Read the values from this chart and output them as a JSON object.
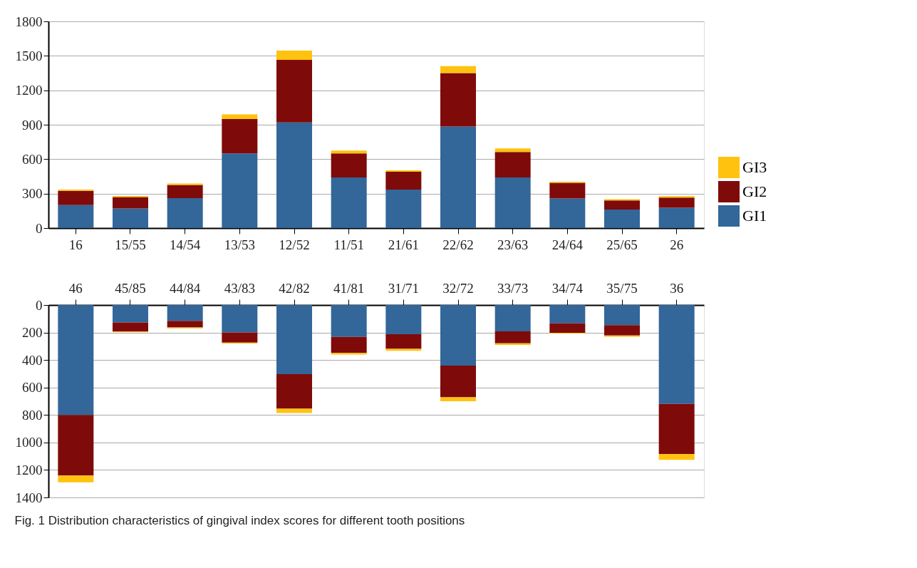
{
  "chart_data": [
    {
      "type": "bar",
      "stacked": true,
      "categories": [
        "16",
        "15/55",
        "14/54",
        "13/53",
        "12/52",
        "11/51",
        "21/61",
        "22/62",
        "23/63",
        "24/64",
        "25/65",
        "26"
      ],
      "series": [
        {
          "name": "GI1",
          "color": "#336699",
          "values": [
            200,
            170,
            260,
            650,
            920,
            440,
            335,
            885,
            440,
            257,
            161,
            177
          ]
        },
        {
          "name": "GI2",
          "color": "#7f0a0a",
          "values": [
            125,
            100,
            115,
            300,
            545,
            210,
            155,
            465,
            223,
            137,
            80,
            88
          ]
        },
        {
          "name": "GI3",
          "color": "#ffc20e",
          "values": [
            10,
            10,
            13,
            40,
            80,
            25,
            12,
            60,
            30,
            10,
            10,
            12
          ]
        }
      ],
      "ylim": [
        0,
        1800
      ],
      "yticks": [
        0,
        300,
        600,
        900,
        1200,
        1500,
        1800
      ],
      "grid": "y",
      "legend": "right"
    },
    {
      "type": "bar",
      "stacked": true,
      "categories": [
        "46",
        "45/85",
        "44/84",
        "43/83",
        "42/82",
        "41/81",
        "31/71",
        "32/72",
        "33/73",
        "34/74",
        "35/75",
        "36"
      ],
      "series": [
        {
          "color": "#336699",
          "values": [
            800,
            127,
            115,
            200,
            503,
            232,
            212,
            441,
            192,
            133,
            146,
            720
          ]
        },
        {
          "color": "#7f0a0a",
          "values": [
            440,
            66,
            48,
            73,
            251,
            117,
            107,
            230,
            87,
            69,
            76,
            365
          ]
        },
        {
          "color": "#ffc20e",
          "values": [
            50,
            5,
            7,
            7,
            32,
            12,
            14,
            29,
            12,
            6,
            9,
            41
          ]
        }
      ],
      "ylim": [
        1400,
        0
      ],
      "yticks": [
        0,
        200,
        400,
        600,
        800,
        1000,
        1200,
        1400
      ],
      "grid": "y",
      "annotations": [
        "Fig. 1  Distribution characteristics of gingival index scores for different tooth positions"
      ]
    }
  ]
}
